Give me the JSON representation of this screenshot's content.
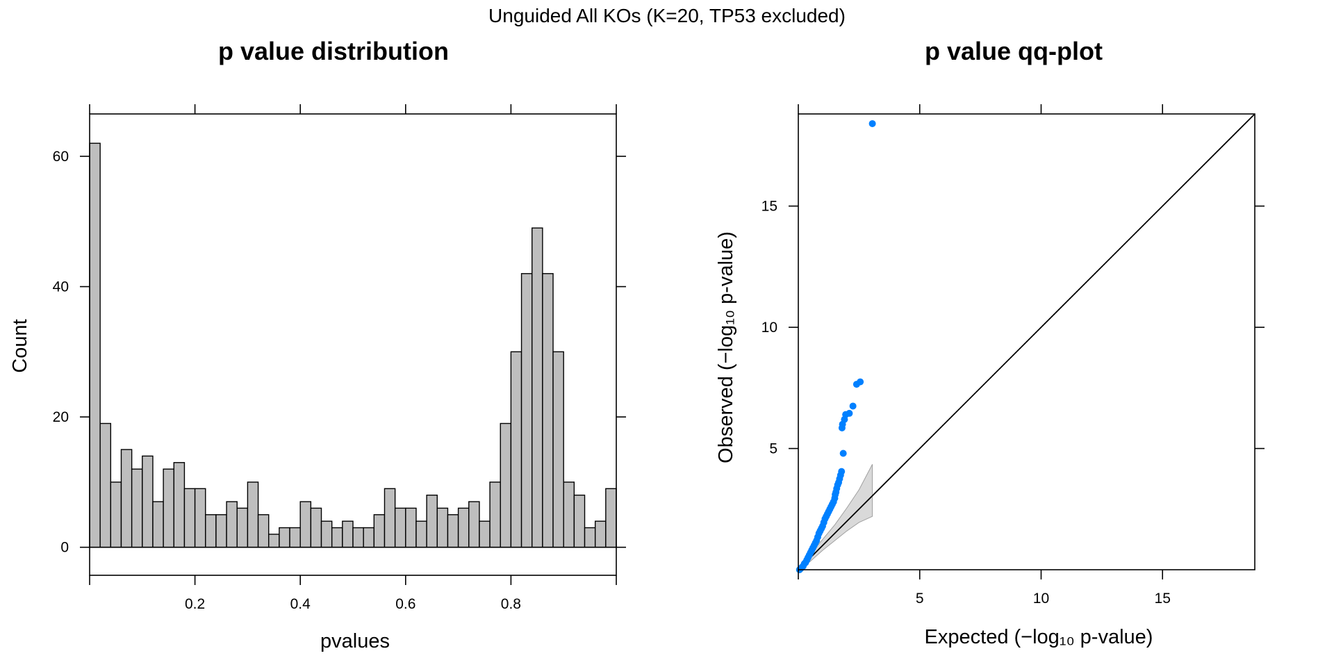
{
  "suptitle": "Unguided All KOs (K=20, TP53 excluded)",
  "chart_data": [
    {
      "type": "bar",
      "subtype": "histogram",
      "title": "p value distribution",
      "xlabel": "pvalues",
      "ylabel": "Count",
      "bin_width": 0.02,
      "x_range": [
        0,
        1
      ],
      "xlim": [
        0,
        1
      ],
      "ylim": [
        -4.3,
        66.5
      ],
      "x_ticks": [
        0.2,
        0.4,
        0.6,
        0.8
      ],
      "x_tick_labels": [
        "0.2",
        "0.4",
        "0.6",
        "0.8"
      ],
      "y_ticks": [
        0,
        20,
        40,
        60
      ],
      "y_tick_labels": [
        "0",
        "20",
        "40",
        "60"
      ],
      "bar_color": "#bebebe",
      "values": [
        62,
        19,
        10,
        15,
        12,
        14,
        7,
        12,
        13,
        9,
        9,
        5,
        5,
        7,
        6,
        10,
        5,
        2,
        3,
        3,
        7,
        6,
        4,
        3,
        4,
        3,
        3,
        5,
        9,
        6,
        6,
        4,
        8,
        6,
        5,
        6,
        7,
        4,
        10,
        19,
        30,
        42,
        49,
        42,
        30,
        10,
        8,
        3,
        4,
        9
      ],
      "grid": false,
      "legend": "none"
    },
    {
      "type": "scatter",
      "title": "p value qq-plot",
      "xlabel": "Expected (−log₁₀ p-value)",
      "ylabel": "Observed (−log₁₀ p-value)",
      "xlim": [
        0,
        18.8
      ],
      "ylim": [
        0,
        18.8
      ],
      "x_ticks": [
        5,
        10,
        15
      ],
      "x_tick_labels": [
        "5",
        "10",
        "15"
      ],
      "y_ticks": [
        5,
        10,
        15
      ],
      "y_tick_labels": [
        "5",
        "10",
        "15"
      ],
      "point_color": "#0080ff",
      "band_color": "#d9d9d9",
      "reference_line": "y = x",
      "confidence_band": {
        "x": [
          0.05,
          0.5,
          1.0,
          1.5,
          2.0,
          2.5,
          3.05
        ],
        "lower": [
          0.02,
          0.35,
          0.8,
          1.2,
          1.6,
          1.95,
          2.2
        ],
        "upper": [
          0.1,
          0.65,
          1.25,
          1.85,
          2.55,
          3.3,
          4.35
        ]
      },
      "points": {
        "x": [
          0.05,
          0.1,
          0.15,
          0.2,
          0.25,
          0.3,
          0.35,
          0.4,
          0.45,
          0.5,
          0.55,
          0.6,
          0.65,
          0.7,
          0.75,
          0.8,
          0.85,
          0.9,
          0.95,
          1.0,
          1.05,
          1.1,
          1.15,
          1.2,
          1.25,
          1.3,
          1.35,
          1.4,
          1.45,
          1.5,
          1.52,
          1.55,
          1.58,
          1.62,
          1.66,
          1.7,
          1.74,
          1.78,
          1.85,
          1.8,
          1.82,
          1.9,
          1.95,
          2.1,
          2.25,
          2.4,
          2.55,
          3.05
        ],
        "y": [
          0.0,
          0.05,
          0.1,
          0.15,
          0.25,
          0.3,
          0.4,
          0.5,
          0.6,
          0.7,
          0.8,
          0.9,
          1.0,
          1.1,
          1.2,
          1.35,
          1.5,
          1.6,
          1.7,
          1.8,
          1.95,
          2.1,
          2.2,
          2.3,
          2.4,
          2.5,
          2.6,
          2.7,
          2.8,
          2.95,
          3.1,
          3.2,
          3.35,
          3.5,
          3.6,
          3.75,
          3.9,
          4.05,
          4.8,
          5.85,
          6.0,
          6.2,
          6.4,
          6.45,
          6.75,
          7.65,
          7.75,
          18.4
        ]
      },
      "grid": false,
      "legend": "none"
    }
  ]
}
